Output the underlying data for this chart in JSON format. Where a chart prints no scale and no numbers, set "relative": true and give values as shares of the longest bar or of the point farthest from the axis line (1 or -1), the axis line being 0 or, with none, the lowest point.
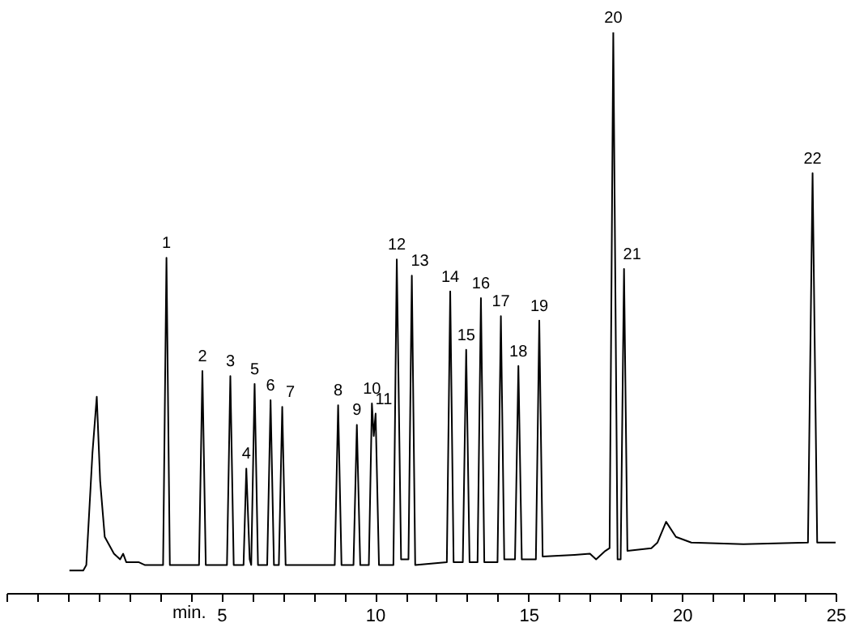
{
  "chart_data": {
    "type": "line",
    "relative": true,
    "xlabel": "min.",
    "xlim": [
      -2,
      25
    ],
    "xticks": [
      {
        "value": -2,
        "label": null
      },
      {
        "value": -1,
        "label": null
      },
      {
        "value": 0,
        "label": null
      },
      {
        "value": 1,
        "label": null
      },
      {
        "value": 2,
        "label": null
      },
      {
        "value": 3,
        "label": null
      },
      {
        "value": 4,
        "label": null
      },
      5,
      {
        "value": 6,
        "label": null
      },
      {
        "value": 7,
        "label": null
      },
      {
        "value": 8,
        "label": null
      },
      {
        "value": 9,
        "label": null
      },
      10,
      {
        "value": 11,
        "label": null
      },
      {
        "value": 12,
        "label": null
      },
      {
        "value": 13,
        "label": null
      },
      {
        "value": 14,
        "label": null
      },
      15,
      {
        "value": 16,
        "label": null
      },
      {
        "value": 17,
        "label": null
      },
      {
        "value": 18,
        "label": null
      },
      {
        "value": 19,
        "label": null
      },
      20,
      {
        "value": 21,
        "label": null
      },
      {
        "value": 22,
        "label": null
      },
      {
        "value": 23,
        "label": null
      },
      {
        "value": 24,
        "label": null
      },
      25
    ],
    "x": [
      0.05,
      0.5,
      0.6,
      0.8,
      0.94,
      1.05,
      1.2,
      1.5,
      1.7,
      1.8,
      1.9,
      2.3,
      2.5,
      3.1,
      3.21,
      3.32,
      4.27,
      4.38,
      4.49,
      5.18,
      5.29,
      5.4,
      5.72,
      5.81,
      5.92,
      5.97,
      6.08,
      6.19,
      6.49,
      6.6,
      6.71,
      6.87,
      6.98,
      7.09,
      8.69,
      8.8,
      8.91,
      9.3,
      9.41,
      9.52,
      9.8,
      9.9,
      9.96,
      10.02,
      10.13,
      10.6,
      10.71,
      10.85,
      11.09,
      11.2,
      11.31,
      12.34,
      12.45,
      12.56,
      12.86,
      12.97,
      13.08,
      13.34,
      13.45,
      13.56,
      13.99,
      14.1,
      14.21,
      14.56,
      14.67,
      14.78,
      15.24,
      15.35,
      15.46,
      16.5,
      17.0,
      17.2,
      17.5,
      17.64,
      17.76,
      17.9,
      18.0,
      18.11,
      18.22,
      19.0,
      19.2,
      19.48,
      19.8,
      20.3,
      22,
      24.1,
      24.25,
      24.4,
      25
    ],
    "values": [
      0.04,
      0.04,
      0.05,
      0.25,
      0.35,
      0.2,
      0.1,
      0.07,
      0.06,
      0.07,
      0.055,
      0.055,
      0.05,
      0.05,
      0.598,
      0.05,
      0.05,
      0.396,
      0.05,
      0.05,
      0.387,
      0.05,
      0.05,
      0.222,
      0.06,
      0.05,
      0.373,
      0.05,
      0.05,
      0.344,
      0.05,
      0.05,
      0.332,
      0.05,
      0.05,
      0.335,
      0.05,
      0.05,
      0.3,
      0.05,
      0.05,
      0.338,
      0.28,
      0.32,
      0.05,
      0.05,
      0.595,
      0.06,
      0.06,
      0.566,
      0.05,
      0.055,
      0.538,
      0.055,
      0.055,
      0.434,
      0.055,
      0.055,
      0.526,
      0.055,
      0.055,
      0.494,
      0.06,
      0.06,
      0.405,
      0.06,
      0.06,
      0.486,
      0.065,
      0.068,
      0.07,
      0.06,
      0.075,
      0.08,
      1,
      0.06,
      0.06,
      0.578,
      0.075,
      0.08,
      0.09,
      0.127,
      0.1,
      0.09,
      0.087,
      0.09,
      0.749,
      0.09,
      0.09
    ],
    "color": "#000000",
    "annotations": [
      {
        "text": "1",
        "x": 3.21,
        "y": 0.598
      },
      {
        "text": "2",
        "x": 4.38,
        "y": 0.396
      },
      {
        "text": "3",
        "x": 5.29,
        "y": 0.387
      },
      {
        "text": "4",
        "x": 5.81,
        "y": 0.222
      },
      {
        "text": "5",
        "x": 6.08,
        "y": 0.373
      },
      {
        "text": "6",
        "x": 6.6,
        "y": 0.344
      },
      {
        "text": "7",
        "x": 6.98,
        "y": 0.332
      },
      {
        "text": "8",
        "x": 8.8,
        "y": 0.335
      },
      {
        "text": "9",
        "x": 9.41,
        "y": 0.3
      },
      {
        "text": "10",
        "x": 9.9,
        "y": 0.338
      },
      {
        "text": "11",
        "x": 10.02,
        "y": 0.32
      },
      {
        "text": "12",
        "x": 10.71,
        "y": 0.595
      },
      {
        "text": "13",
        "x": 11.2,
        "y": 0.566
      },
      {
        "text": "14",
        "x": 12.45,
        "y": 0.538
      },
      {
        "text": "15",
        "x": 12.97,
        "y": 0.434
      },
      {
        "text": "16",
        "x": 13.45,
        "y": 0.526
      },
      {
        "text": "17",
        "x": 14.1,
        "y": 0.494
      },
      {
        "text": "18",
        "x": 14.67,
        "y": 0.405
      },
      {
        "text": "19",
        "x": 15.35,
        "y": 0.486
      },
      {
        "text": "20",
        "x": 17.76,
        "y": 1
      },
      {
        "text": "21",
        "x": 18.11,
        "y": 0.578
      },
      {
        "text": "22",
        "x": 24.25,
        "y": 0.749
      }
    ]
  }
}
